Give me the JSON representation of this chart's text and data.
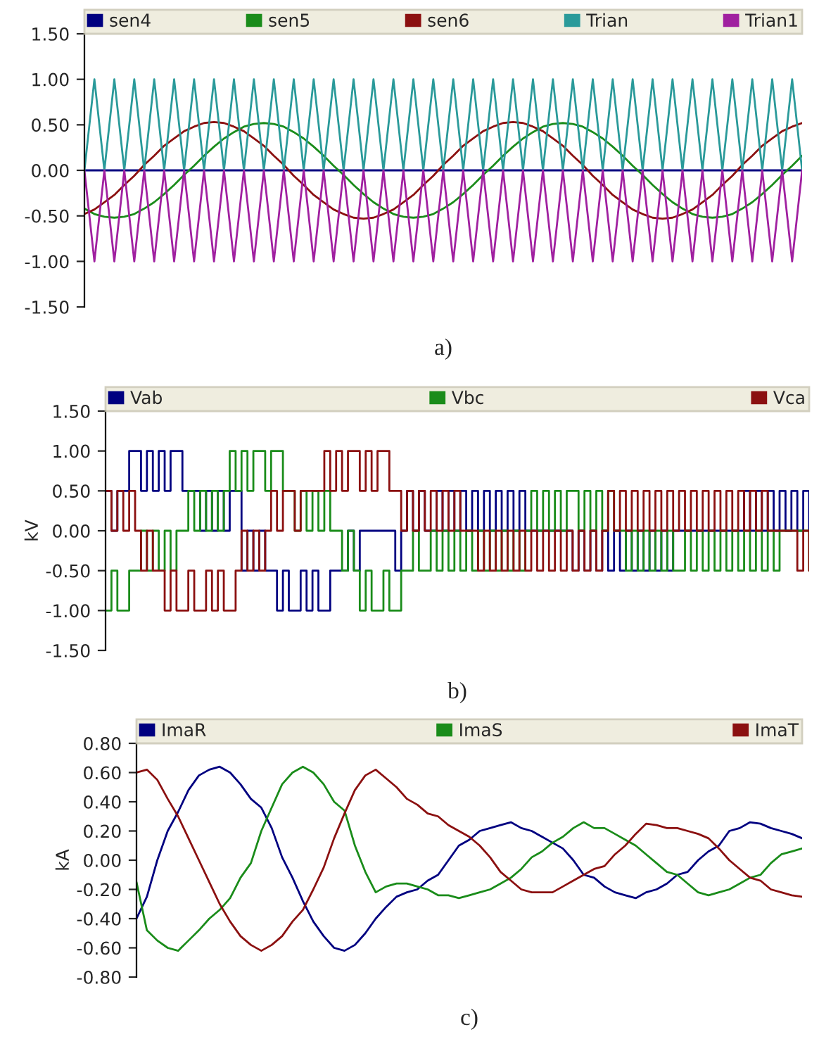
{
  "chart_data": [
    {
      "type": "line",
      "categories": [
        null,
        null,
        null,
        null,
        null,
        null,
        null,
        null,
        null,
        null,
        null,
        null,
        null,
        null,
        null,
        null,
        null,
        null,
        null,
        null,
        null,
        null,
        null,
        null,
        null,
        null,
        null,
        null,
        null,
        null,
        null,
        null,
        null,
        null,
        null,
        null,
        null,
        null,
        null,
        null,
        null,
        null,
        null,
        null,
        null,
        null,
        null,
        null,
        null,
        null,
        null,
        null,
        null,
        null,
        null,
        null,
        null,
        null,
        null,
        null,
        null,
        null,
        null,
        null,
        null,
        null,
        null,
        null,
        null,
        null,
        null,
        null,
        null
      ],
      "series": [
        {
          "name": "sen4",
          "color": "#000080",
          "values": [
            0,
            0,
            0,
            0,
            0,
            0,
            0,
            0,
            0,
            0,
            0,
            0,
            0,
            0,
            0,
            0,
            0,
            0,
            0,
            0,
            0,
            0,
            0,
            0,
            0,
            0,
            0,
            0,
            0,
            0,
            0,
            0,
            0,
            0,
            0,
            0,
            0,
            0,
            0,
            0,
            0,
            0,
            0,
            0,
            0,
            0,
            0,
            0,
            0,
            0,
            0,
            0,
            0,
            0,
            0,
            0,
            0,
            0,
            0,
            0,
            0,
            0,
            0,
            0,
            0,
            0,
            0,
            0,
            0,
            0,
            0,
            0,
            0
          ]
        },
        {
          "name": "sen5",
          "color": "#1a8c1a",
          "values": [
            -0.42,
            -0.48,
            -0.51,
            -0.52,
            -0.51,
            -0.48,
            -0.42,
            -0.35,
            -0.26,
            -0.16,
            -0.05,
            0.05,
            0.16,
            0.26,
            0.35,
            0.42,
            0.48,
            0.51,
            0.52,
            0.51,
            0.48,
            0.42,
            0.35,
            0.26,
            0.16,
            0.05,
            -0.05,
            -0.16,
            -0.26,
            -0.35,
            -0.42,
            -0.48,
            -0.51,
            -0.52,
            -0.51,
            -0.48,
            -0.42,
            -0.35,
            -0.26,
            -0.16,
            -0.05,
            0.05,
            0.16,
            0.26,
            0.35,
            0.42,
            0.48,
            0.51,
            0.52,
            0.51,
            0.48,
            0.42,
            0.35,
            0.26,
            0.16,
            0.05,
            -0.05,
            -0.16,
            -0.26,
            -0.35,
            -0.42,
            -0.48,
            -0.51,
            -0.52,
            -0.51,
            -0.48,
            -0.42,
            -0.35,
            -0.26,
            -0.16,
            -0.05,
            0.05,
            0.16
          ]
        },
        {
          "name": "sen6",
          "color": "#8b1010",
          "values": [
            -0.48,
            -0.43,
            -0.35,
            -0.27,
            -0.16,
            -0.06,
            0.06,
            0.16,
            0.27,
            0.35,
            0.43,
            0.48,
            0.52,
            0.53,
            0.52,
            0.48,
            0.43,
            0.35,
            0.27,
            0.16,
            0.06,
            -0.06,
            -0.16,
            -0.27,
            -0.35,
            -0.43,
            -0.48,
            -0.52,
            -0.53,
            -0.52,
            -0.48,
            -0.43,
            -0.35,
            -0.27,
            -0.16,
            -0.06,
            0.06,
            0.16,
            0.27,
            0.35,
            0.43,
            0.48,
            0.52,
            0.53,
            0.52,
            0.48,
            0.43,
            0.35,
            0.27,
            0.16,
            0.06,
            -0.06,
            -0.16,
            -0.27,
            -0.35,
            -0.43,
            -0.48,
            -0.52,
            -0.53,
            -0.52,
            -0.48,
            -0.43,
            -0.35,
            -0.27,
            -0.16,
            -0.06,
            0.06,
            0.16,
            0.27,
            0.35,
            0.43,
            0.48,
            0.52
          ]
        },
        {
          "name": "Trian",
          "color": "#2a9a9a",
          "values": [
            0,
            1,
            0,
            1,
            0,
            1,
            0,
            1,
            0,
            1,
            0,
            1,
            0,
            1,
            0,
            1,
            0,
            1,
            0,
            1,
            0,
            1,
            0,
            1,
            0,
            1,
            0,
            1,
            0,
            1,
            0,
            1,
            0,
            1,
            0,
            1,
            0,
            1,
            0,
            1,
            0,
            1,
            0,
            1,
            0,
            1,
            0,
            1,
            0,
            1,
            0,
            1,
            0,
            1,
            0,
            1,
            0,
            1,
            0,
            1,
            0,
            1,
            0,
            1,
            0,
            1,
            0,
            1,
            0,
            1,
            0,
            1,
            0
          ]
        },
        {
          "name": "Trian1",
          "color": "#a020a0",
          "values": [
            0,
            -1,
            0,
            -1,
            0,
            -1,
            0,
            -1,
            0,
            -1,
            0,
            -1,
            0,
            -1,
            0,
            -1,
            0,
            -1,
            0,
            -1,
            0,
            -1,
            0,
            -1,
            0,
            -1,
            0,
            -1,
            0,
            -1,
            0,
            -1,
            0,
            -1,
            0,
            -1,
            0,
            -1,
            0,
            -1,
            0,
            -1,
            0,
            -1,
            0,
            -1,
            0,
            -1,
            0,
            -1,
            0,
            -1,
            0,
            -1,
            0,
            -1,
            0,
            -1,
            0,
            -1,
            0,
            -1,
            0,
            -1,
            0,
            -1,
            0,
            -1,
            0,
            -1,
            0,
            -1,
            0
          ]
        }
      ],
      "ylim": [
        -1.5,
        1.5
      ],
      "yticks": [
        {
          "value": -1.5,
          "label": "-1.50"
        },
        {
          "value": -1.0,
          "label": "-1.00"
        },
        {
          "value": -0.5,
          "label": "-0.50"
        },
        {
          "value": 0,
          "label": "0.00"
        },
        {
          "value": 0.5,
          "label": "0.50"
        },
        {
          "value": 1.0,
          "label": "1.00"
        },
        {
          "value": 1.5,
          "label": "1.50"
        }
      ],
      "tick_labels": "y",
      "legend": "top",
      "grid": false,
      "annotations": [
        "a)"
      ]
    },
    {
      "type": "step",
      "ylabel": "kV",
      "categories": [
        null,
        null,
        null,
        null,
        null,
        null,
        null,
        null,
        null,
        null,
        null,
        null,
        null,
        null,
        null,
        null,
        null,
        null,
        null,
        null,
        null,
        null,
        null,
        null,
        null,
        null,
        null,
        null,
        null,
        null,
        null,
        null,
        null,
        null,
        null,
        null,
        null,
        null,
        null,
        null,
        null,
        null,
        null,
        null,
        null,
        null,
        null,
        null,
        null,
        null,
        null,
        null,
        null,
        null,
        null,
        null,
        null,
        null,
        null,
        null,
        null,
        null,
        null,
        null,
        null,
        null,
        null,
        null,
        null,
        null,
        null,
        null,
        null,
        null,
        null,
        null,
        null,
        null,
        null,
        null,
        null,
        null,
        null,
        null,
        null,
        null,
        null,
        null,
        null,
        null,
        null,
        null,
        null,
        null,
        null,
        null,
        null,
        null,
        null,
        null,
        null,
        null,
        null,
        null,
        null,
        null,
        null,
        null,
        null,
        null,
        null,
        null,
        null,
        null,
        null,
        null,
        null,
        null,
        null,
        null
      ],
      "series": [
        {
          "name": "Vab",
          "color": "#000080",
          "values": [
            0.5,
            0,
            0.5,
            0.5,
            1,
            1,
            0.5,
            1,
            0.5,
            1,
            0.5,
            1,
            1,
            0.5,
            0.5,
            0.5,
            0,
            0.5,
            0,
            0.5,
            0,
            0.5,
            0.5,
            -0.5,
            0,
            -0.5,
            0,
            -0.5,
            -0.5,
            -1,
            -0.5,
            -1,
            -1,
            -0.5,
            -1,
            -0.5,
            -1,
            -1,
            -0.5,
            -0.5,
            -0.5,
            0,
            -0.5,
            0,
            0,
            0,
            0,
            0,
            0,
            -0.5,
            0,
            0.5,
            0,
            0.5,
            0,
            0,
            0.5,
            0,
            0.5,
            0,
            0.5,
            0,
            0.5,
            0,
            0.5,
            0,
            0.5,
            0,
            0.5,
            0,
            0.5,
            0,
            0,
            0,
            0,
            0,
            0,
            0,
            0,
            -0.5,
            0,
            -0.5,
            0,
            -0.5,
            0,
            -0.5,
            0,
            -0.5,
            0,
            -0.5,
            0,
            -0.5,
            0,
            -0.5,
            0,
            -0.5,
            0,
            0,
            0,
            0,
            0,
            0,
            0,
            0,
            0,
            0,
            0,
            0,
            0.5,
            0,
            0.5,
            0,
            0.5,
            0,
            0.5,
            0,
            0.5,
            0,
            0.5,
            0
          ]
        },
        {
          "name": "Vbc",
          "color": "#1a8c1a",
          "values": [
            -1,
            -0.5,
            -1,
            -1,
            -0.5,
            -0.5,
            0,
            -0.5,
            0,
            -0.5,
            0,
            -0.5,
            0,
            0,
            0.5,
            0,
            0.5,
            0,
            0.5,
            0,
            0.5,
            1,
            0.5,
            1,
            0.5,
            1,
            1,
            0.5,
            1,
            1,
            0.5,
            0.5,
            0,
            0.5,
            0,
            0.5,
            0,
            0.5,
            0,
            0,
            -0.5,
            0,
            -0.5,
            -1,
            -0.5,
            -1,
            -1,
            -0.5,
            -1,
            -1,
            -0.5,
            -0.5,
            0,
            -0.5,
            -0.5,
            0,
            -0.5,
            0,
            -0.5,
            0,
            -0.5,
            0,
            -0.5,
            0,
            -0.5,
            0,
            -0.5,
            0,
            -0.5,
            0,
            -0.5,
            0,
            0.5,
            0,
            0.5,
            0,
            0.5,
            0,
            0.5,
            0.5,
            0,
            0.5,
            0,
            0.5,
            0,
            0.5,
            0,
            0,
            -0.5,
            0,
            -0.5,
            0,
            -0.5,
            0,
            -0.5,
            0,
            -0.5,
            -0.5,
            0,
            -0.5,
            0,
            -0.5,
            0,
            -0.5,
            0,
            -0.5,
            0,
            -0.5,
            0,
            -0.5,
            0,
            -0.5,
            0,
            -0.5,
            0,
            0,
            0,
            0,
            0,
            -0.5
          ]
        },
        {
          "name": "Vca",
          "color": "#8b1010",
          "values": [
            0.5,
            0,
            0.5,
            0,
            0.5,
            0,
            -0.5,
            0,
            -0.5,
            -0.5,
            -1,
            -0.5,
            -1,
            -1,
            -0.5,
            -1,
            -1,
            -0.5,
            -1,
            -0.5,
            -1,
            -1,
            -0.5,
            0,
            -0.5,
            0,
            -0.5,
            0,
            0.5,
            0,
            0.5,
            0.5,
            0,
            0.5,
            0.5,
            0.5,
            0.5,
            1,
            0.5,
            1,
            0.5,
            1,
            1,
            0.5,
            1,
            0.5,
            1,
            1,
            0.5,
            0.5,
            0,
            0.5,
            0,
            0.5,
            0,
            0.5,
            0,
            0.5,
            0,
            0.5,
            0,
            0,
            0,
            -0.5,
            0,
            -0.5,
            0,
            -0.5,
            0,
            -0.5,
            0,
            -0.5,
            0,
            -0.5,
            0,
            -0.5,
            0,
            -0.5,
            0,
            -0.5,
            0,
            -0.5,
            0,
            -0.5,
            0,
            0.5,
            0,
            0.5,
            0,
            0.5,
            0,
            0.5,
            0,
            0.5,
            0,
            0.5,
            0,
            0.5,
            0,
            0.5,
            0,
            0.5,
            0,
            0.5,
            0,
            0.5,
            0,
            0.5,
            0,
            0.5,
            0,
            0.5,
            0,
            0,
            0,
            0,
            0,
            -0.5,
            0,
            -0.5
          ]
        }
      ],
      "ylim": [
        -1.5,
        1.5
      ],
      "yticks": [
        {
          "value": -1.5,
          "label": "-1.50"
        },
        {
          "value": -1.0,
          "label": "-1.00"
        },
        {
          "value": -0.5,
          "label": "-0.50"
        },
        {
          "value": 0,
          "label": "0.00"
        },
        {
          "value": 0.5,
          "label": "0.50"
        },
        {
          "value": 1.0,
          "label": "1.00"
        },
        {
          "value": 1.5,
          "label": "1.50"
        }
      ],
      "tick_labels": "y",
      "legend": "top",
      "grid": false,
      "annotations": [
        "b)"
      ]
    },
    {
      "type": "line",
      "ylabel": "kA",
      "categories": [
        null,
        null,
        null,
        null,
        null,
        null,
        null,
        null,
        null,
        null,
        null,
        null,
        null,
        null,
        null,
        null,
        null,
        null,
        null,
        null,
        null,
        null,
        null,
        null,
        null,
        null,
        null,
        null,
        null,
        null,
        null,
        null,
        null,
        null,
        null,
        null,
        null,
        null,
        null,
        null,
        null,
        null,
        null,
        null,
        null,
        null,
        null,
        null,
        null,
        null,
        null,
        null,
        null,
        null,
        null,
        null,
        null,
        null,
        null,
        null,
        null,
        null,
        null,
        null,
        null
      ],
      "series": [
        {
          "name": "ImaR",
          "color": "#000080",
          "values": [
            -0.4,
            -0.25,
            0.0,
            0.2,
            0.33,
            0.48,
            0.58,
            0.62,
            0.64,
            0.6,
            0.52,
            0.42,
            0.36,
            0.22,
            0.02,
            -0.12,
            -0.28,
            -0.42,
            -0.52,
            -0.6,
            -0.62,
            -0.58,
            -0.5,
            -0.4,
            -0.32,
            -0.25,
            -0.22,
            -0.2,
            -0.14,
            -0.1,
            0.0,
            0.1,
            0.14,
            0.2,
            0.22,
            0.24,
            0.26,
            0.22,
            0.2,
            0.16,
            0.12,
            0.08,
            0.0,
            -0.1,
            -0.12,
            -0.18,
            -0.22,
            -0.24,
            -0.26,
            -0.22,
            -0.2,
            -0.16,
            -0.1,
            -0.08,
            0.0,
            0.06,
            0.1,
            0.2,
            0.22,
            0.26,
            0.25,
            0.22,
            0.2,
            0.18,
            0.15
          ]
        },
        {
          "name": "ImaS",
          "color": "#1a8c1a",
          "values": [
            -0.15,
            -0.48,
            -0.55,
            -0.6,
            -0.62,
            -0.55,
            -0.48,
            -0.4,
            -0.34,
            -0.26,
            -0.12,
            -0.02,
            0.2,
            0.36,
            0.52,
            0.6,
            0.64,
            0.6,
            0.52,
            0.4,
            0.34,
            0.1,
            -0.08,
            -0.22,
            -0.18,
            -0.16,
            -0.16,
            -0.18,
            -0.2,
            -0.24,
            -0.24,
            -0.26,
            -0.24,
            -0.22,
            -0.2,
            -0.16,
            -0.12,
            -0.06,
            0.02,
            0.06,
            0.12,
            0.16,
            0.22,
            0.26,
            0.22,
            0.22,
            0.18,
            0.14,
            0.1,
            0.04,
            -0.02,
            -0.08,
            -0.1,
            -0.16,
            -0.22,
            -0.24,
            -0.22,
            -0.2,
            -0.16,
            -0.12,
            -0.1,
            -0.02,
            0.04,
            0.06,
            0.08
          ]
        },
        {
          "name": "ImaT",
          "color": "#8b1010",
          "values": [
            0.6,
            0.62,
            0.55,
            0.42,
            0.3,
            0.15,
            0.0,
            -0.15,
            -0.3,
            -0.42,
            -0.52,
            -0.58,
            -0.62,
            -0.58,
            -0.52,
            -0.42,
            -0.34,
            -0.2,
            -0.05,
            0.15,
            0.32,
            0.48,
            0.58,
            0.62,
            0.56,
            0.5,
            0.42,
            0.38,
            0.32,
            0.3,
            0.24,
            0.2,
            0.16,
            0.1,
            0.02,
            -0.08,
            -0.14,
            -0.2,
            -0.22,
            -0.22,
            -0.22,
            -0.18,
            -0.14,
            -0.1,
            -0.06,
            -0.04,
            0.04,
            0.1,
            0.18,
            0.25,
            0.24,
            0.22,
            0.22,
            0.2,
            0.18,
            0.15,
            0.08,
            0.0,
            -0.06,
            -0.12,
            -0.14,
            -0.2,
            -0.22,
            -0.24,
            -0.25
          ]
        }
      ],
      "ylim": [
        -0.8,
        0.8
      ],
      "yticks": [
        {
          "value": -0.8,
          "label": "-0.80"
        },
        {
          "value": -0.6,
          "label": "-0.60"
        },
        {
          "value": -0.4,
          "label": "-0.40"
        },
        {
          "value": -0.2,
          "label": "-0.20"
        },
        {
          "value": 0,
          "label": "0.00"
        },
        {
          "value": 0.2,
          "label": "0.20"
        },
        {
          "value": 0.4,
          "label": "0.40"
        },
        {
          "value": 0.6,
          "label": "0.60"
        },
        {
          "value": 0.8,
          "label": "0.80"
        }
      ],
      "tick_labels": "y",
      "legend": "top",
      "grid": false,
      "annotations": [
        "c)"
      ]
    }
  ]
}
